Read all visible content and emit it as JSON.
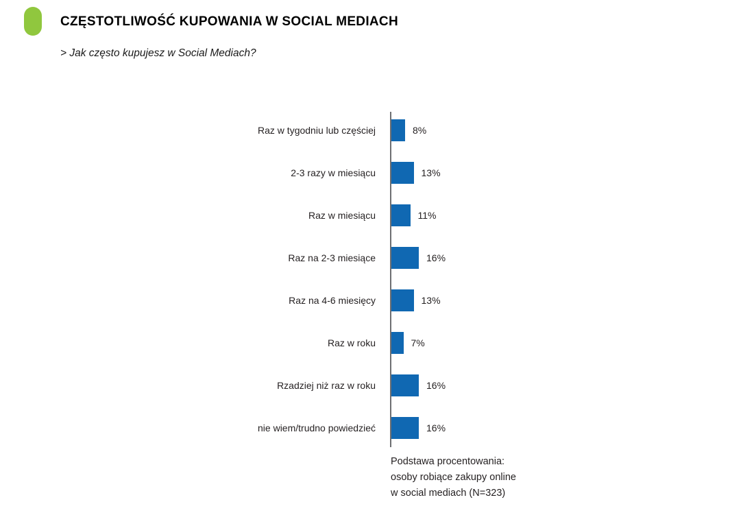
{
  "page": {
    "header": {
      "bullet_color": "#90c73e",
      "title": "CZĘSTOTLIWOŚĆ KUPOWANIA W SOCIAL MEDIACH",
      "subtitle": "> Jak często kupujesz w Social Mediach?"
    },
    "footnote": {
      "lines": [
        "Podstawa procentowania:",
        "osoby robiące zakupy online",
        "w social mediach (N=323)"
      ]
    }
  },
  "chart_data": {
    "type": "bar",
    "orientation": "horizontal",
    "title": "CZĘSTOTLIWOŚĆ KUPOWANIA W SOCIAL MEDIACH",
    "question": "> Jak często kupujesz w Social Mediach?",
    "categories": [
      "Raz w tygodniu lub częściej",
      "2-3 razy w miesiącu",
      "Raz w miesiącu",
      "Raz na 2-3 miesiące",
      "Raz na 4-6 miesięcy",
      "Raz w roku",
      "Rzadziej niż raz w roku",
      "nie wiem/trudno powiedzieć"
    ],
    "values": [
      8,
      13,
      11,
      16,
      13,
      7,
      16,
      16
    ],
    "value_labels": [
      "8%",
      "13%",
      "11%",
      "16%",
      "13%",
      "7%",
      "16%",
      "16%"
    ],
    "unit": "%",
    "xlim": [
      0,
      20
    ],
    "grid": false,
    "legend": false,
    "bar_color": "#1068b2",
    "axis_color": "#6d6e71",
    "note": "Podstawa procentowania: osoby robiące zakupy online w social mediach (N=323)"
  }
}
